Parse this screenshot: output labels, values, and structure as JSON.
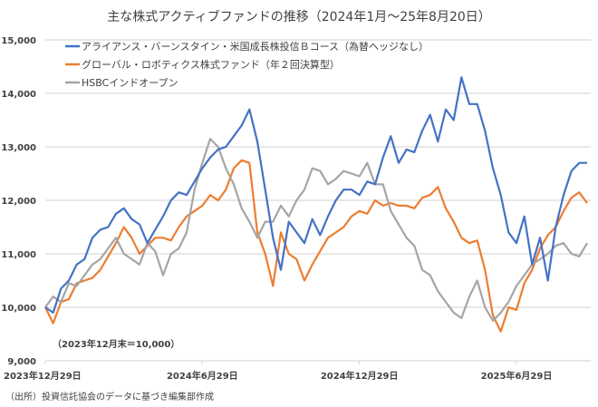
{
  "chart_data": {
    "type": "line",
    "title": "主な株式アクティブファンドの推移（2024年1月～25年8月20日）",
    "xlabel": "",
    "ylabel": "",
    "ylim": [
      9000,
      15000
    ],
    "yticks": [
      9000,
      10000,
      11000,
      12000,
      13000,
      14000,
      15000
    ],
    "ytick_labels": [
      "9,000",
      "10,000",
      "11,000",
      "12,000",
      "13,000",
      "14,000",
      "15,000"
    ],
    "xlim_months": [
      0,
      20.7
    ],
    "xticks_months": [
      0,
      6,
      12,
      18
    ],
    "xtick_labels": [
      "2023年12月29日",
      "2024年6月29日",
      "2024年12月29日",
      "2025年6月29日"
    ],
    "grid": true,
    "legend_position": "top-left",
    "annotation": "（2023年12月末＝10,000）",
    "x_months": [
      0,
      0.3,
      0.6,
      0.9,
      1.2,
      1.5,
      1.8,
      2.1,
      2.4,
      2.7,
      3.0,
      3.3,
      3.6,
      3.9,
      4.2,
      4.5,
      4.8,
      5.1,
      5.4,
      5.7,
      6.0,
      6.3,
      6.6,
      6.9,
      7.2,
      7.5,
      7.8,
      8.1,
      8.4,
      8.7,
      9.0,
      9.3,
      9.6,
      9.9,
      10.2,
      10.5,
      10.8,
      11.1,
      11.4,
      11.7,
      12.0,
      12.3,
      12.6,
      12.9,
      13.2,
      13.5,
      13.8,
      14.1,
      14.4,
      14.7,
      15.0,
      15.3,
      15.6,
      15.9,
      16.2,
      16.5,
      16.8,
      17.1,
      17.4,
      17.7,
      18.0,
      18.3,
      18.6,
      18.9,
      19.2,
      19.5,
      19.8,
      20.1,
      20.4,
      20.7
    ],
    "series": [
      {
        "name": "アライアンス・バーンスタイン・米国成長株投信Ｂコース（為替ヘッジなし）",
        "color": "#4472C4",
        "values": [
          10000,
          9900,
          10350,
          10500,
          10800,
          10900,
          11300,
          11450,
          11500,
          11750,
          11850,
          11650,
          11550,
          11200,
          11450,
          11700,
          12000,
          12150,
          12100,
          12350,
          12600,
          12800,
          12950,
          13000,
          13200,
          13400,
          13700,
          13100,
          12200,
          11300,
          10700,
          11600,
          11400,
          11200,
          11650,
          11350,
          11700,
          12000,
          12200,
          12200,
          12100,
          12350,
          12300,
          12800,
          13200,
          12700,
          12950,
          12900,
          13300,
          13600,
          13100,
          13700,
          13500,
          14300,
          13800,
          13800,
          13300,
          12600,
          12100,
          11400,
          11200,
          11700,
          10800,
          11300,
          10500,
          11500,
          12100,
          12550,
          12700,
          12700
        ]
      },
      {
        "name": "グローバル・ロボティクス株式ファンド（年２回決算型）",
        "color": "#ED7D31",
        "values": [
          10000,
          9700,
          10100,
          10150,
          10450,
          10500,
          10550,
          10700,
          10950,
          11200,
          11500,
          11300,
          11000,
          11150,
          11300,
          11300,
          11250,
          11500,
          11700,
          11800,
          11900,
          12100,
          12000,
          12200,
          12600,
          12750,
          12700,
          11400,
          11000,
          10400,
          11400,
          11000,
          10900,
          10500,
          10800,
          11050,
          11300,
          11400,
          11500,
          11700,
          11800,
          11750,
          12000,
          11900,
          11950,
          11900,
          11900,
          11850,
          12050,
          12100,
          12250,
          11850,
          11600,
          11300,
          11200,
          11250,
          10700,
          9850,
          9550,
          10000,
          9950,
          10450,
          10700,
          11100,
          11350,
          11500,
          11800,
          12050,
          12150,
          11950
        ]
      },
      {
        "name": "HSBCインドオープン",
        "color": "#A5A5A5",
        "values": [
          10000,
          10200,
          10100,
          10450,
          10400,
          10600,
          10800,
          10900,
          11100,
          11300,
          11000,
          10900,
          10800,
          11200,
          11050,
          10600,
          11000,
          11100,
          11400,
          12200,
          12700,
          13150,
          13000,
          12600,
          12300,
          11850,
          11600,
          11300,
          11600,
          11600,
          11900,
          11700,
          12000,
          12200,
          12600,
          12550,
          12300,
          12400,
          12550,
          12500,
          12450,
          12700,
          12300,
          12300,
          11800,
          11550,
          11300,
          11150,
          10700,
          10600,
          10300,
          10100,
          9900,
          9800,
          10200,
          10500,
          10000,
          9750,
          9900,
          10100,
          10400,
          10600,
          10800,
          10900,
          11000,
          11150,
          11200,
          11000,
          10950,
          11200
        ]
      }
    ]
  },
  "legend": [
    "アライアンス・バーンスタイン・米国成長株投信Ｂコース（為替ヘッジなし）",
    "グローバル・ロボティクス株式ファンド（年２回決算型）",
    "HSBCインドオープン"
  ],
  "source_note": "（出所）投資信託協会のデータに基づき編集部作成"
}
